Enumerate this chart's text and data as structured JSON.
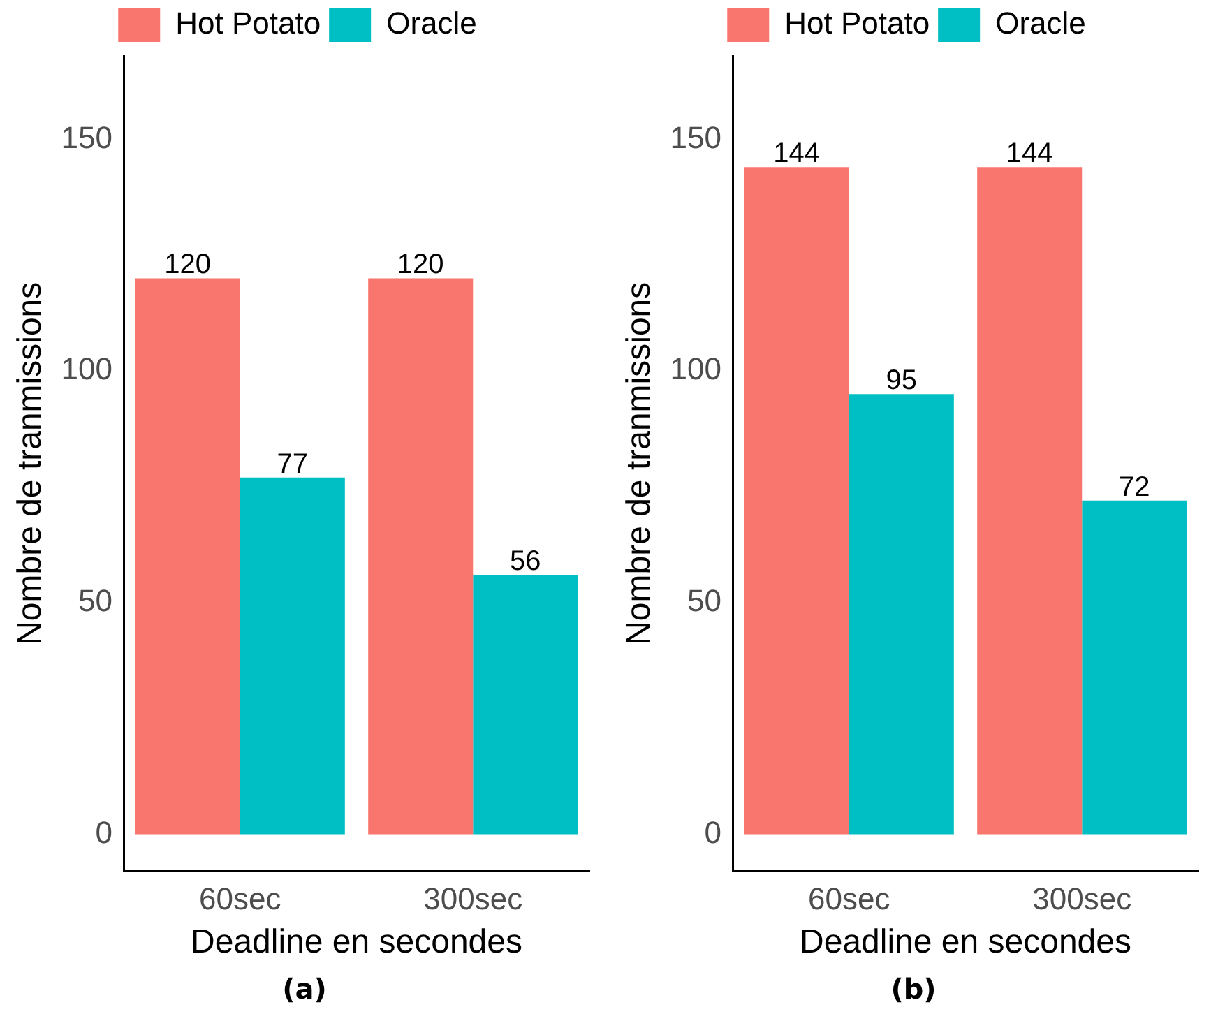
{
  "chart_data": [
    {
      "type": "bar",
      "categories": [
        "60sec",
        "300sec"
      ],
      "series": [
        {
          "name": "Hot Potato",
          "color": "#f8766d",
          "values": [
            120,
            120
          ]
        },
        {
          "name": "Oracle",
          "color": "#00bfc4",
          "values": [
            77,
            56
          ]
        }
      ],
      "xlabel": "Deadline en secondes",
      "ylabel": "Nombre de tranmissions",
      "ylim": [
        -8,
        168
      ],
      "yticks": [
        0,
        50,
        100,
        150
      ],
      "grid": false,
      "legend": "top",
      "data_labels": true,
      "annotations": [
        "(a)"
      ]
    },
    {
      "type": "bar",
      "categories": [
        "60sec",
        "300sec"
      ],
      "series": [
        {
          "name": "Hot Potato",
          "color": "#f8766d",
          "values": [
            144,
            144
          ]
        },
        {
          "name": "Oracle",
          "color": "#00bfc4",
          "values": [
            95,
            72
          ]
        }
      ],
      "xlabel": "Deadline en secondes",
      "ylabel": "Nombre de tranmissions",
      "ylim": [
        -8,
        168
      ],
      "yticks": [
        0,
        50,
        100,
        150
      ],
      "grid": false,
      "legend": "top",
      "data_labels": true,
      "annotations": [
        "(b)"
      ]
    }
  ]
}
